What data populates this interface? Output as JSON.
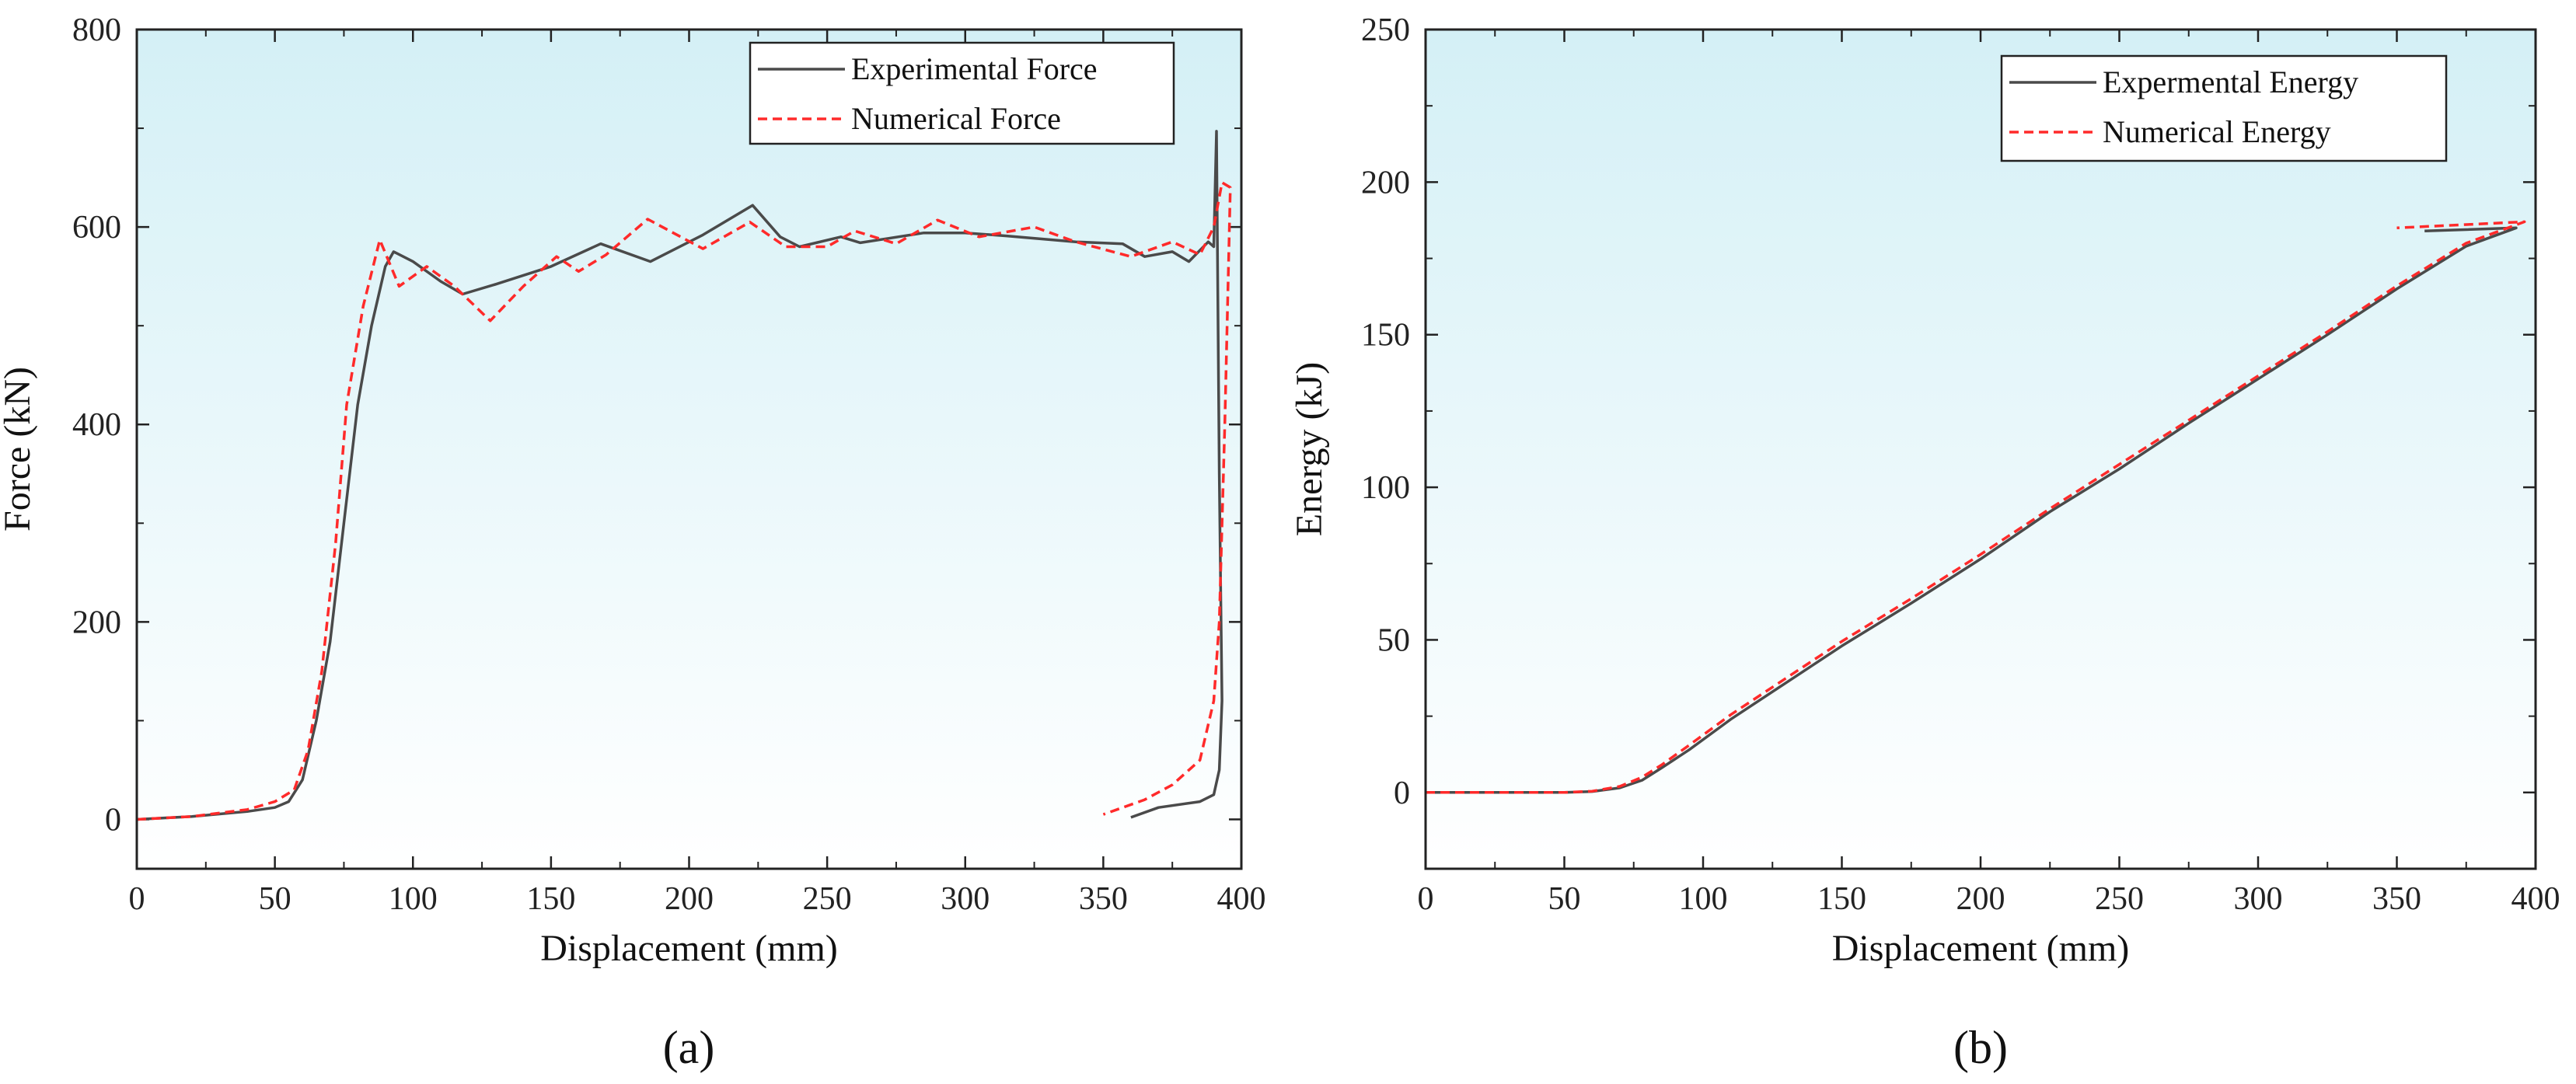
{
  "chart_data": [
    {
      "type": "line",
      "panel_label": "(a)",
      "xlabel": "Displacement (mm)",
      "ylabel": "Force (kN)",
      "xlim": [
        0,
        400
      ],
      "ylim": [
        -50,
        800
      ],
      "xticks": [
        0,
        50,
        100,
        150,
        200,
        250,
        300,
        350,
        400
      ],
      "yticks": [
        0,
        200,
        400,
        600,
        800
      ],
      "legend_position": "top-right",
      "series": [
        {
          "name": "Experimental Force",
          "style": "solid",
          "color": "#4a4a4a",
          "points": [
            [
              0,
              0
            ],
            [
              20,
              3
            ],
            [
              40,
              8
            ],
            [
              50,
              12
            ],
            [
              55,
              18
            ],
            [
              60,
              40
            ],
            [
              65,
              100
            ],
            [
              70,
              180
            ],
            [
              75,
              300
            ],
            [
              80,
              420
            ],
            [
              85,
              500
            ],
            [
              90,
              560
            ],
            [
              93,
              575
            ],
            [
              100,
              565
            ],
            [
              110,
              545
            ],
            [
              118,
              532
            ],
            [
              130,
              542
            ],
            [
              150,
              560
            ],
            [
              168,
              583
            ],
            [
              186,
              565
            ],
            [
              205,
              592
            ],
            [
              223,
              622
            ],
            [
              233,
              590
            ],
            [
              240,
              580
            ],
            [
              255,
              590
            ],
            [
              262,
              584
            ],
            [
              285,
              594
            ],
            [
              300,
              594
            ],
            [
              315,
              591
            ],
            [
              340,
              585
            ],
            [
              357,
              583
            ],
            [
              365,
              570
            ],
            [
              375,
              575
            ],
            [
              381,
              565
            ],
            [
              388,
              585
            ],
            [
              390,
              580
            ],
            [
              391,
              697
            ],
            [
              392,
              350
            ],
            [
              393,
              120
            ],
            [
              392,
              50
            ],
            [
              390,
              25
            ],
            [
              385,
              18
            ],
            [
              370,
              12
            ],
            [
              360,
              2
            ]
          ]
        },
        {
          "name": "Numerical Force",
          "style": "dashed",
          "color": "#ff2a2a",
          "points": [
            [
              0,
              0
            ],
            [
              20,
              3
            ],
            [
              40,
              10
            ],
            [
              50,
              18
            ],
            [
              57,
              30
            ],
            [
              62,
              70
            ],
            [
              67,
              150
            ],
            [
              72,
              280
            ],
            [
              76,
              420
            ],
            [
              82,
              520
            ],
            [
              88,
              587
            ],
            [
              95,
              540
            ],
            [
              105,
              560
            ],
            [
              115,
              540
            ],
            [
              128,
              505
            ],
            [
              140,
              540
            ],
            [
              152,
              570
            ],
            [
              160,
              555
            ],
            [
              170,
              572
            ],
            [
              185,
              608
            ],
            [
              205,
              578
            ],
            [
              222,
              605
            ],
            [
              235,
              580
            ],
            [
              250,
              580
            ],
            [
              260,
              596
            ],
            [
              275,
              583
            ],
            [
              290,
              607
            ],
            [
              305,
              590
            ],
            [
              325,
              600
            ],
            [
              340,
              585
            ],
            [
              360,
              570
            ],
            [
              375,
              585
            ],
            [
              385,
              572
            ],
            [
              390,
              600
            ],
            [
              393,
              645
            ],
            [
              396,
              640
            ],
            [
              394,
              400
            ],
            [
              392,
              200
            ],
            [
              390,
              120
            ],
            [
              385,
              60
            ],
            [
              375,
              35
            ],
            [
              365,
              20
            ],
            [
              350,
              5
            ]
          ]
        }
      ]
    },
    {
      "type": "line",
      "panel_label": "(b)",
      "xlabel": "Displacement (mm)",
      "ylabel": "Energy (kJ)",
      "xlim": [
        0,
        400
      ],
      "ylim": [
        -25,
        250
      ],
      "xticks": [
        0,
        50,
        100,
        150,
        200,
        250,
        300,
        350,
        400
      ],
      "yticks": [
        0,
        50,
        100,
        150,
        200,
        250
      ],
      "legend_position": "top-right",
      "series": [
        {
          "name": "Expermental Energy",
          "style": "solid",
          "color": "#4a4a4a",
          "points": [
            [
              0,
              0
            ],
            [
              50,
              0
            ],
            [
              60,
              0.3
            ],
            [
              70,
              1.5
            ],
            [
              78,
              4
            ],
            [
              85,
              8
            ],
            [
              95,
              14
            ],
            [
              110,
              24
            ],
            [
              130,
              36
            ],
            [
              150,
              48
            ],
            [
              175,
              62
            ],
            [
              200,
              76.5
            ],
            [
              225,
              92
            ],
            [
              250,
              106
            ],
            [
              275,
              121
            ],
            [
              300,
              135.5
            ],
            [
              325,
              150
            ],
            [
              350,
              165
            ],
            [
              375,
              179
            ],
            [
              393,
              185
            ],
            [
              360,
              184
            ]
          ]
        },
        {
          "name": "Numerical Energy",
          "style": "dashed",
          "color": "#ff2a2a",
          "points": [
            [
              0,
              0
            ],
            [
              50,
              0
            ],
            [
              60,
              0.4
            ],
            [
              70,
              2
            ],
            [
              78,
              5
            ],
            [
              85,
              9
            ],
            [
              95,
              15.5
            ],
            [
              110,
              25.5
            ],
            [
              130,
              37.5
            ],
            [
              150,
              49.5
            ],
            [
              175,
              63.5
            ],
            [
              200,
              78
            ],
            [
              225,
              93
            ],
            [
              250,
              107.5
            ],
            [
              275,
              122
            ],
            [
              300,
              136.5
            ],
            [
              325,
              151
            ],
            [
              350,
              166
            ],
            [
              375,
              180
            ],
            [
              396,
              187
            ],
            [
              350,
              185
            ]
          ]
        }
      ]
    }
  ]
}
